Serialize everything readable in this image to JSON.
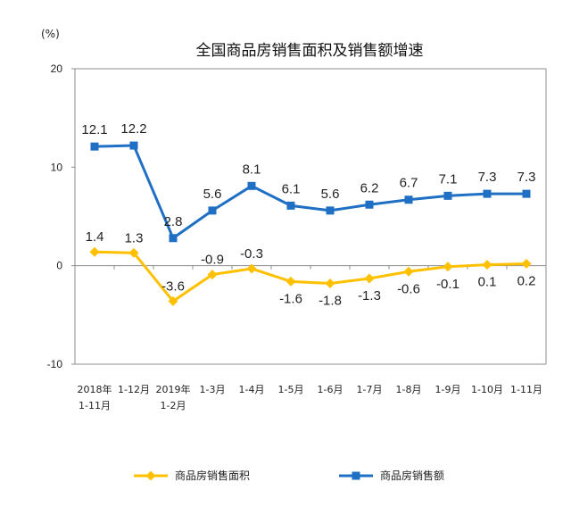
{
  "chart_data": {
    "type": "line",
    "title": "全国商品房销售面积及销售额增速",
    "ylabel": "(%)",
    "ylim": [
      -10,
      20
    ],
    "yticks": [
      "20",
      "10",
      "0",
      "-10"
    ],
    "categories": [
      [
        "2018年",
        "1-11月"
      ],
      [
        "1-12月"
      ],
      [
        "2019年",
        "1-2月"
      ],
      [
        "1-3月"
      ],
      [
        "1-4月"
      ],
      [
        "1-5月"
      ],
      [
        "1-6月"
      ],
      [
        "1-7月"
      ],
      [
        "1-8月"
      ],
      [
        "1-9月"
      ],
      [
        "1-10月"
      ],
      [
        "1-11月"
      ]
    ],
    "series": [
      {
        "name": "商品房销售面积",
        "color": "#FFC000",
        "marker": "diamond",
        "values": [
          1.4,
          1.3,
          -3.6,
          -0.9,
          -0.3,
          -1.6,
          -1.8,
          -1.3,
          -0.6,
          -0.1,
          0.1,
          0.2
        ],
        "labels": [
          "1.4",
          "1.3",
          "-3.6",
          "-0.9",
          "-0.3",
          "-1.6",
          "-1.8",
          "-1.3",
          "-0.6",
          "-0.1",
          "0.1",
          "0.2"
        ]
      },
      {
        "name": "商品房销售额",
        "color": "#1F6FC5",
        "marker": "square",
        "values": [
          12.1,
          12.2,
          2.8,
          5.6,
          8.1,
          6.1,
          5.6,
          6.2,
          6.7,
          7.1,
          7.3,
          7.3
        ],
        "labels": [
          "12.1",
          "12.2",
          "2.8",
          "5.6",
          "8.1",
          "6.1",
          "5.6",
          "6.2",
          "6.7",
          "7.1",
          "7.3",
          "7.3"
        ]
      }
    ],
    "grid": false,
    "legend": "bottom"
  }
}
